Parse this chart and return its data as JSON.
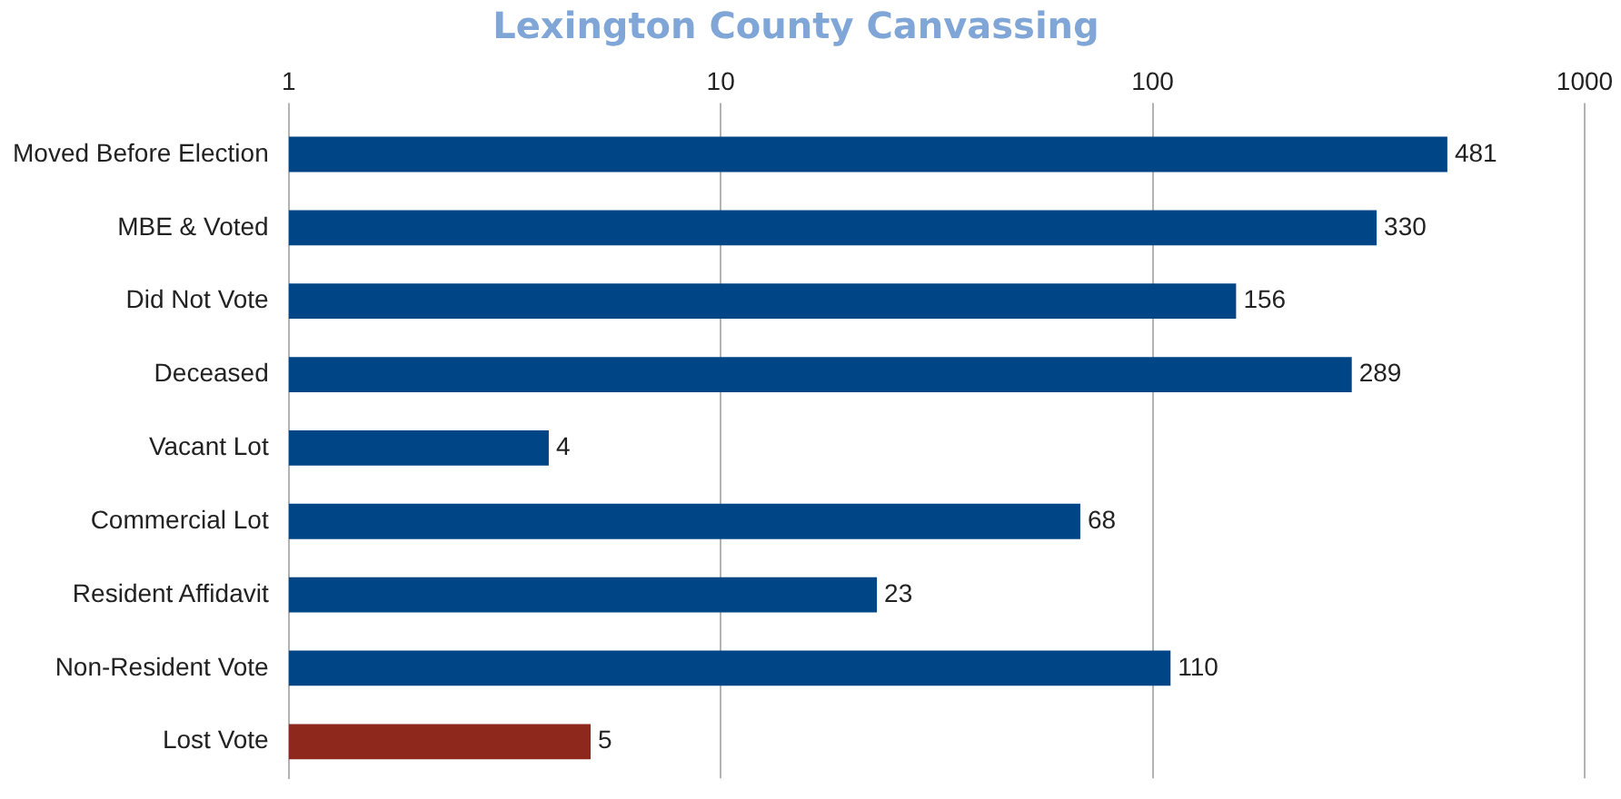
{
  "chart_data": {
    "type": "bar",
    "orientation": "horizontal",
    "title": "Lexington County Canvassing",
    "categories": [
      "Moved Before Election",
      "MBE & Voted",
      "Did Not Vote",
      "Deceased",
      "Vacant Lot",
      "Commercial Lot",
      "Resident Affidavit",
      "Non-Resident Vote",
      "Lost Vote"
    ],
    "values": [
      481,
      330,
      156,
      289,
      4,
      68,
      23,
      110,
      5
    ],
    "colors": [
      "#004586",
      "#004586",
      "#004586",
      "#004586",
      "#004586",
      "#004586",
      "#004586",
      "#004586",
      "#8e281c"
    ],
    "log": "x",
    "xlim": [
      1,
      1000
    ],
    "xticks": [
      1,
      10,
      100,
      1000
    ],
    "grid": "x",
    "legend": false,
    "data_labels": true
  }
}
